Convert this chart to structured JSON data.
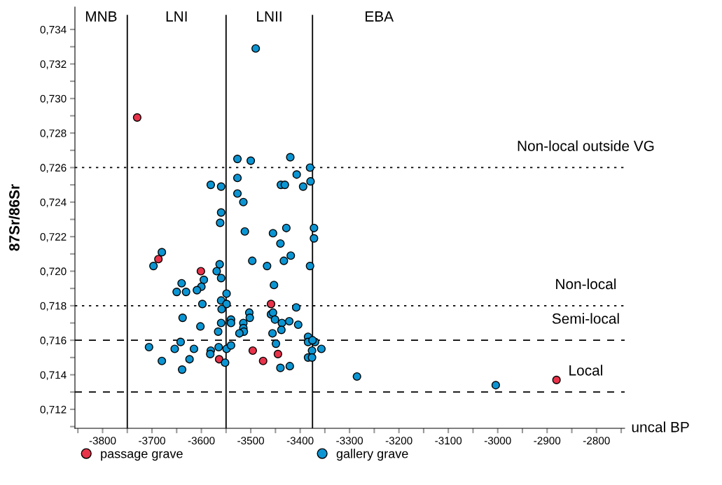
{
  "chart_data": {
    "type": "scatter",
    "ylabel": "87Sr/86Sr",
    "xlabel": "uncal BP",
    "xlim": [
      -3856,
      -2743
    ],
    "ylim": [
      0.7109,
      0.7353
    ],
    "xticks": [
      {
        "value": -3850,
        "label": null
      },
      -3800,
      {
        "value": -3750,
        "label": null
      },
      -3700,
      {
        "value": -3650,
        "label": null
      },
      -3600,
      {
        "value": -3550,
        "label": null
      },
      -3500,
      {
        "value": -3450,
        "label": null
      },
      -3400,
      {
        "value": -3350,
        "label": null
      },
      -3300,
      {
        "value": -3250,
        "label": null
      },
      -3200,
      {
        "value": -3150,
        "label": null
      },
      -3100,
      {
        "value": -3050,
        "label": null
      },
      -3000,
      {
        "value": -2950,
        "label": null
      },
      -2900,
      {
        "value": -2850,
        "label": null
      },
      -2800,
      {
        "value": -2750,
        "label": null
      }
    ],
    "yticks": [
      {
        "value": 0.711,
        "label": null
      },
      {
        "value": 0.712,
        "label": "0,712"
      },
      {
        "value": 0.713,
        "label": null
      },
      {
        "value": 0.714,
        "label": "0,714"
      },
      {
        "value": 0.715,
        "label": null
      },
      {
        "value": 0.716,
        "label": "0,716"
      },
      {
        "value": 0.717,
        "label": null
      },
      {
        "value": 0.718,
        "label": "0,718"
      },
      {
        "value": 0.719,
        "label": null
      },
      {
        "value": 0.72,
        "label": "0,720"
      },
      {
        "value": 0.721,
        "label": null
      },
      {
        "value": 0.722,
        "label": "0,722"
      },
      {
        "value": 0.723,
        "label": null
      },
      {
        "value": 0.724,
        "label": "0,724"
      },
      {
        "value": 0.725,
        "label": null
      },
      {
        "value": 0.726,
        "label": "0,726"
      },
      {
        "value": 0.727,
        "label": null
      },
      {
        "value": 0.728,
        "label": "0,728"
      },
      {
        "value": 0.729,
        "label": null
      },
      {
        "value": 0.73,
        "label": "0,730"
      },
      {
        "value": 0.731,
        "label": null
      },
      {
        "value": 0.732,
        "label": "0,732"
      },
      {
        "value": 0.733,
        "label": null
      },
      {
        "value": 0.734,
        "label": "0,734"
      }
    ],
    "grid": false,
    "legend": "bottom",
    "marker": "circle",
    "ref_lines": [
      {
        "axis": "x",
        "value": -3750,
        "color": "#000000",
        "line_style": "solid"
      },
      {
        "axis": "x",
        "value": -3550,
        "color": "#000000",
        "line_style": "solid"
      },
      {
        "axis": "x",
        "value": -3375,
        "color": "#000000",
        "line_style": "solid"
      },
      {
        "axis": "y",
        "value": 0.726,
        "label": "Non-local outside VG",
        "color": "#000000",
        "line_style": "dotted"
      },
      {
        "axis": "y",
        "value": 0.718,
        "label": "Non-local",
        "color": "#000000",
        "line_style": "dotted"
      },
      {
        "axis": "y",
        "value": 0.716,
        "label": "Semi-local",
        "color": "#000000",
        "line_style": "dashed"
      },
      {
        "axis": "y",
        "value": 0.713,
        "label": "Local",
        "color": "#000000",
        "line_style": "dashed"
      }
    ],
    "annotations": [
      "MNB",
      "LNI",
      "LNII",
      "EBA"
    ],
    "series": [
      {
        "name": "passage grave",
        "color": "#e8334a",
        "x": [
          -3730,
          -3687,
          -3601,
          -3459,
          -3445,
          -3496,
          -3475,
          -3564,
          -2881
        ],
        "values": [
          0.7289,
          0.7207,
          0.72,
          0.7181,
          0.7152,
          0.7154,
          0.7148,
          0.7149,
          0.7137
        ]
      },
      {
        "name": "gallery grave",
        "color": "#0b95d3",
        "x": [
          -3490,
          -3527,
          -3500,
          -3420,
          -3380,
          -3407,
          -3527,
          -3439,
          -3431,
          -3394,
          -3379,
          -3527,
          -3515,
          -3581,
          -3560,
          -3372,
          -3372,
          -3428,
          -3455,
          -3440,
          -3419,
          -3433,
          -3467,
          -3380,
          -3453,
          -3408,
          -3459,
          -3455,
          -3451,
          -3437,
          -3422,
          -3404,
          -3438,
          -3456,
          -3384,
          -3384,
          -3370,
          -3375,
          -3357,
          -3376,
          -3384,
          -3376,
          -3449,
          -3440,
          -3421,
          -3560,
          -3562,
          -3512,
          -3497,
          -3680,
          -3697,
          -3563,
          -3569,
          -3560,
          -3595,
          -3600,
          -3609,
          -3640,
          -3650,
          -3631,
          -3598,
          -3549,
          -3560,
          -3549,
          -3559,
          -3638,
          -3560,
          -3540,
          -3540,
          -3602,
          -3566,
          -3503,
          -3502,
          -3515,
          -3515,
          -3514,
          -3523,
          -3552,
          -3549,
          -3540,
          -3565,
          -3581,
          -3582,
          -3615,
          -3642,
          -3654,
          -3624,
          -3639,
          -3680,
          -3706,
          -3285,
          -3004
        ],
        "values": [
          0.7329,
          0.7265,
          0.7264,
          0.7266,
          0.726,
          0.7256,
          0.7254,
          0.725,
          0.725,
          0.7249,
          0.7252,
          0.7245,
          0.724,
          0.725,
          0.7249,
          0.7225,
          0.7219,
          0.7225,
          0.7222,
          0.7216,
          0.7209,
          0.7206,
          0.7203,
          0.7203,
          0.7192,
          0.7179,
          0.7175,
          0.7176,
          0.7172,
          0.717,
          0.7171,
          0.7169,
          0.7166,
          0.7164,
          0.7162,
          0.7159,
          0.7159,
          0.716,
          0.7155,
          0.7154,
          0.715,
          0.715,
          0.7158,
          0.7144,
          0.7145,
          0.7234,
          0.7228,
          0.7223,
          0.7206,
          0.7211,
          0.7203,
          0.7204,
          0.72,
          0.7196,
          0.7195,
          0.7191,
          0.7189,
          0.7193,
          0.7188,
          0.7188,
          0.7181,
          0.7187,
          0.7183,
          0.7181,
          0.7178,
          0.7173,
          0.717,
          0.7172,
          0.717,
          0.7168,
          0.7165,
          0.7176,
          0.7173,
          0.717,
          0.7167,
          0.7165,
          0.7164,
          0.7147,
          0.7155,
          0.7157,
          0.7156,
          0.7154,
          0.7152,
          0.7155,
          0.7159,
          0.7155,
          0.7149,
          0.7143,
          0.7148,
          0.7156,
          0.7139,
          0.7134
        ]
      }
    ]
  }
}
